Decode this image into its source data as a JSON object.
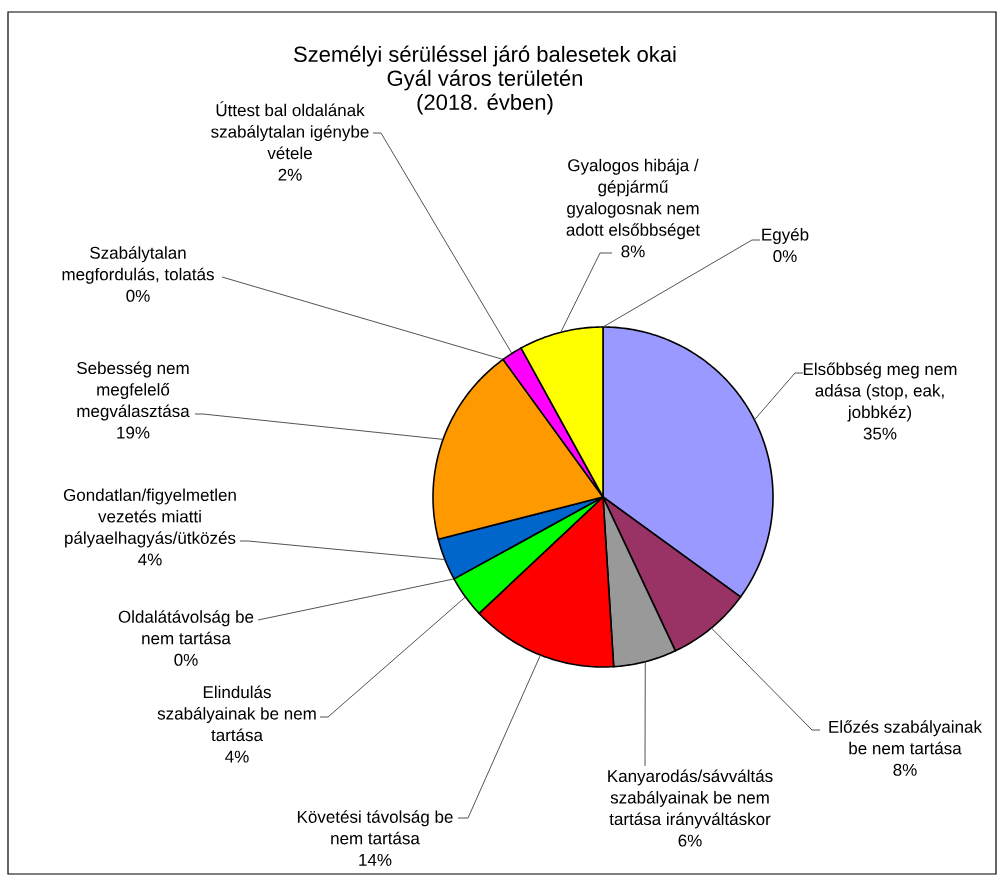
{
  "chart_data": {
    "type": "pie",
    "title": "Személyi sérüléssel járó balesetek okai Gyál város területén",
    "subtitle": "(2018. évben)",
    "categories": [
      "Elsőbbség meg nem adása (stop, eak, jobbkéz)",
      "Előzés szabályainak be nem tartása",
      "Kanyarodás/sávváltás szabályainak be nem tartása irányváltáskor",
      "Követési távolság be nem tartása",
      "Elindulás szabályainak be nem tartása",
      "Oldalátávolság be nem tartása",
      "Gondatlan/figyelmetlen vezetés miatti pályaelhagyás/ütközés",
      "Sebesség nem megfelelő megválasztása",
      "Szabálytalan megfordulás, tolatás",
      "Úttest bal oldalának szabálytalan igénybe vétele",
      "Gyalogos hibája / gépjármű gyalogosnak nem adott elsőbbséget",
      "Egyéb"
    ],
    "values": [
      35,
      8,
      6,
      14,
      4,
      0,
      4,
      19,
      0,
      2,
      8,
      0
    ],
    "value_labels": [
      "35%",
      "8%",
      "6%",
      "14%",
      "4%",
      "0%",
      "4%",
      "19%",
      "0%",
      "2%",
      "8%",
      "0%"
    ],
    "colors": [
      "#9999ff",
      "#993366",
      "#999999",
      "#ff0000",
      "#00ff00",
      null,
      "#0066cc",
      "#ff9900",
      null,
      "#ff00ff",
      "#ffff00",
      null
    ]
  }
}
